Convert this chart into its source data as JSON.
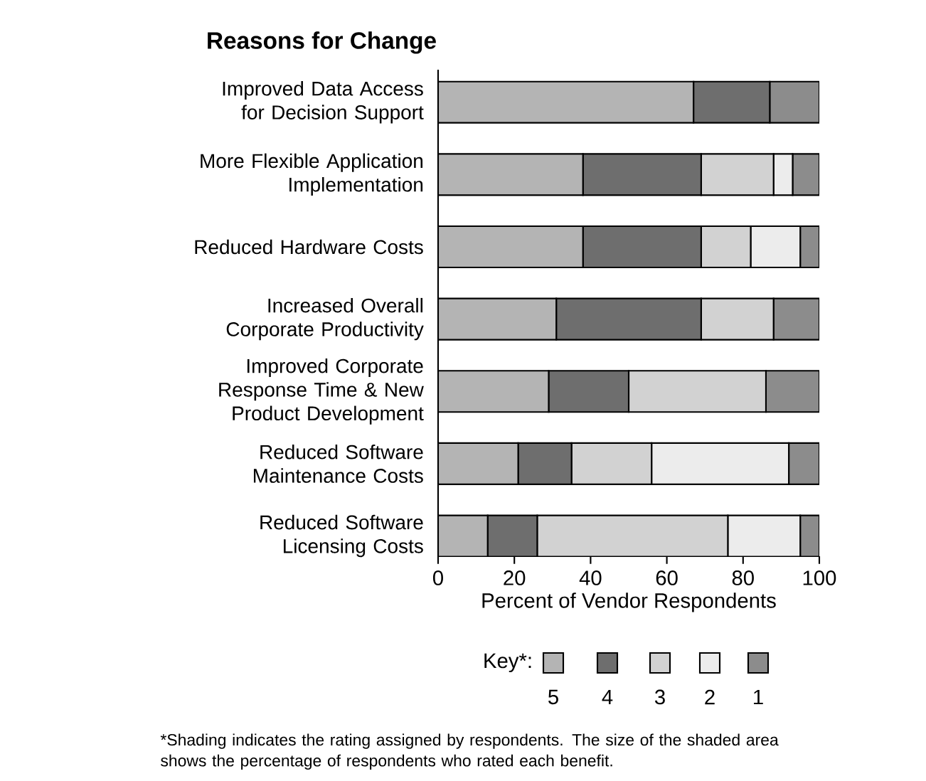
{
  "chart_data": {
    "type": "bar",
    "orientation": "horizontal",
    "stacked": true,
    "title": "Reasons for Change",
    "categories": [
      "Improved Data Access for Decision Support",
      "More Flexible Application Implementation",
      "Reduced Hardware Costs",
      "Increased Overall Corporate Productivity",
      "Improved Corporate Response Time & New Product Development",
      "Reduced Software Maintenance Costs",
      "Reduced Software Licensing Costs"
    ],
    "xlabel": "Percent of Vendor Respondents",
    "xlim": [
      0,
      100
    ],
    "xticks": [
      0,
      20,
      40,
      60,
      80,
      100
    ],
    "legend": "bottom",
    "legend_title": "Key*:",
    "series": [
      {
        "name": "5",
        "color": "#b4b4b4",
        "values": [
          67,
          38,
          38,
          31,
          29,
          21,
          13
        ]
      },
      {
        "name": "4",
        "color": "#6e6e6e",
        "values": [
          20,
          31,
          31,
          38,
          21,
          14,
          13
        ]
      },
      {
        "name": "3",
        "color": "#d2d2d2",
        "values": [
          0,
          19,
          13,
          19,
          36,
          21,
          50
        ]
      },
      {
        "name": "2",
        "color": "#ececec",
        "values": [
          0,
          5,
          13,
          0,
          0,
          36,
          19
        ]
      },
      {
        "name": "1",
        "color": "#8c8c8c",
        "values": [
          13,
          7,
          5,
          12,
          14,
          8,
          5
        ]
      }
    ],
    "annotations": [
      "*Shading indicates the rating assigned by respondents. The size of the shaded area shows the percentage of respondents who rated each benefit."
    ]
  }
}
